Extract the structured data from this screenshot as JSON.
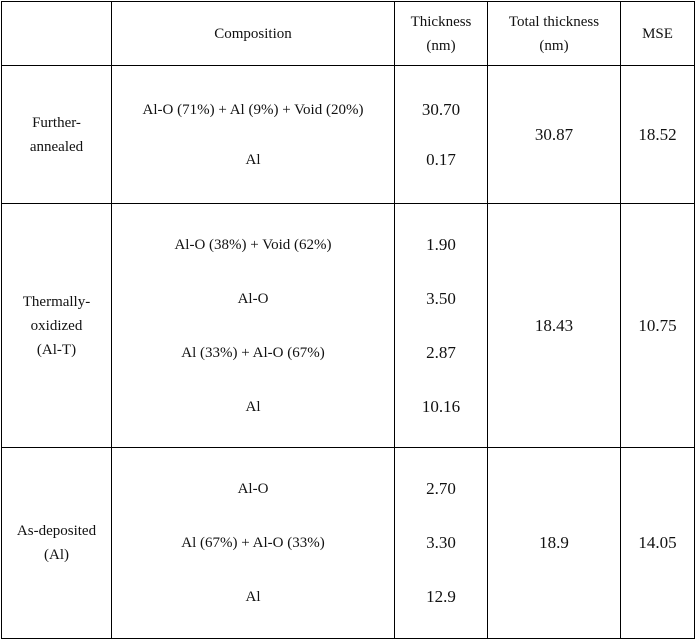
{
  "table": {
    "header": [
      "Composition",
      "Thickness\n(nm)",
      "Total thickness\n(nm)",
      "MSE"
    ],
    "groups": [
      {
        "sample": "Further-\nannealed",
        "layers": [
          {
            "composition": "Al-O (71%) + Al (9%) + Void (20%)",
            "thickness": "30.70"
          },
          {
            "composition": "Al",
            "thickness": "0.17"
          }
        ],
        "total": "30.87",
        "mse": "18.52"
      },
      {
        "sample": "Thermally-\noxidized\n(Al-T)",
        "layers": [
          {
            "composition": "Al-O (38%) + Void (62%)",
            "thickness": "1.90"
          },
          {
            "composition": "Al-O",
            "thickness": "3.50"
          },
          {
            "composition": "Al (33%) + Al-O (67%)",
            "thickness": "2.87"
          },
          {
            "composition": "Al",
            "thickness": "10.16"
          }
        ],
        "total": "18.43",
        "mse": "10.75"
      },
      {
        "sample": "As-deposited\n(Al)",
        "layers": [
          {
            "composition": "Al-O",
            "thickness": "2.70"
          },
          {
            "composition": "Al (67%) + Al-O (33%)",
            "thickness": "3.30"
          },
          {
            "composition": "Al",
            "thickness": "12.9"
          }
        ],
        "total": "18.9",
        "mse": "14.05"
      }
    ]
  }
}
